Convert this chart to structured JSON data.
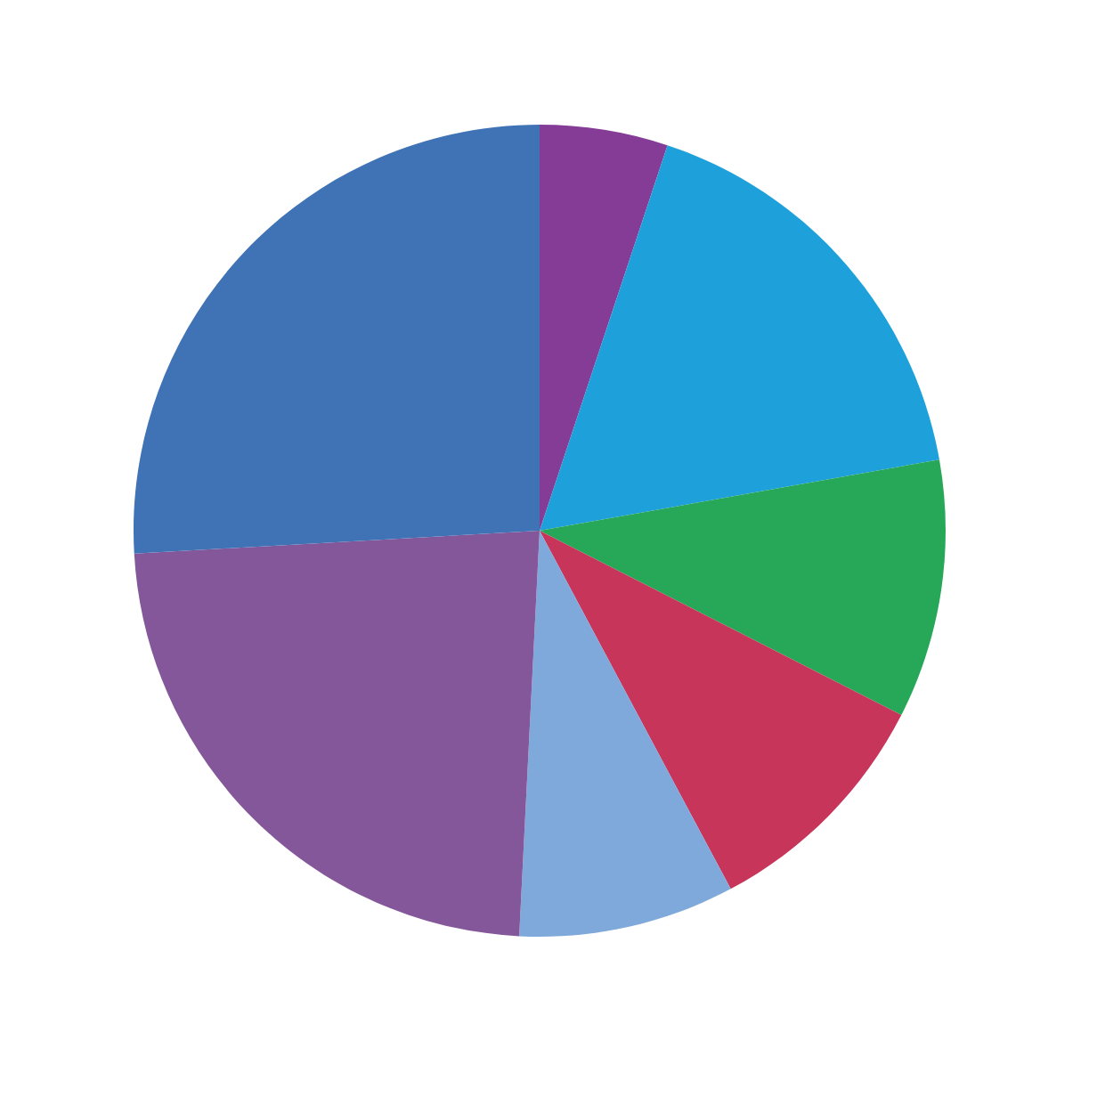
{
  "chart_data": {
    "type": "pie",
    "categories": [
      null,
      null,
      null,
      null,
      null,
      null,
      null
    ],
    "values": [
      5.1,
      17.1,
      10.3,
      9.7,
      8.6,
      23.3,
      25.9
    ],
    "colors": [
      "#843c96",
      "#1ea1db",
      "#27a858",
      "#c8355b",
      "#7ea9da",
      "#84579b",
      "#3f73b5"
    ]
  }
}
